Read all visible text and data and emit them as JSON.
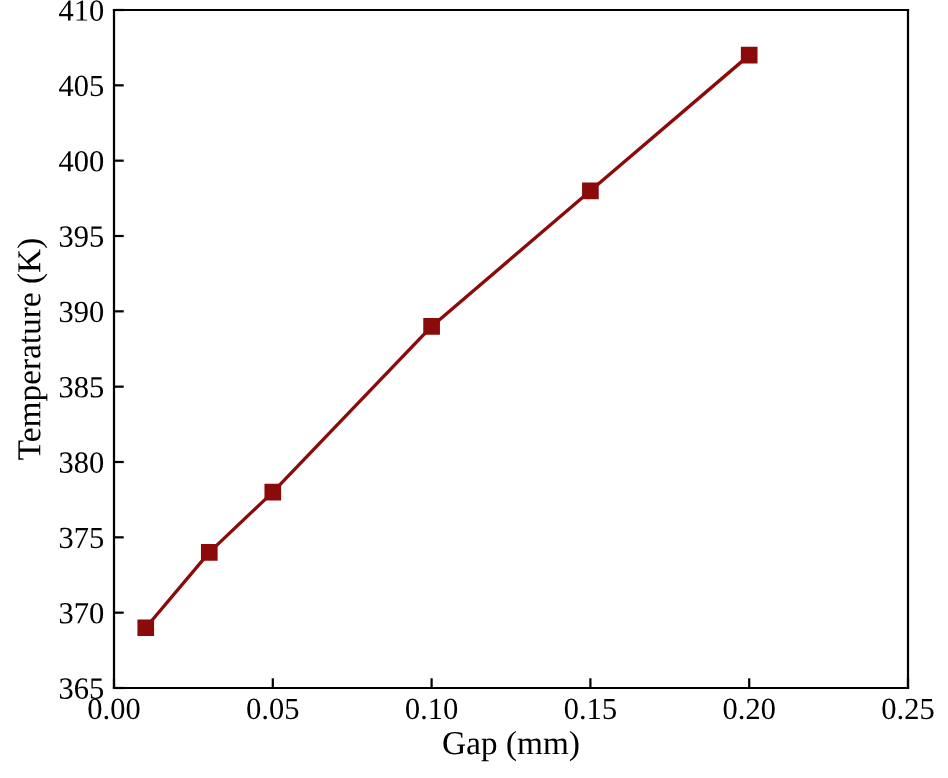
{
  "chart_data": {
    "type": "line",
    "xlabel": "Gap (mm)",
    "ylabel": "Temperature (K)",
    "x": [
      0.01,
      0.03,
      0.05,
      0.1,
      0.15,
      0.2
    ],
    "series": [
      {
        "color": "#8b0a0a",
        "values": [
          369,
          374,
          378,
          389,
          398,
          407
        ]
      }
    ],
    "xlim": [
      0,
      0.25
    ],
    "xticks": [
      {
        "value": 0,
        "label": "0.00"
      },
      0.05,
      {
        "value": 0.1,
        "label": "0.10"
      },
      0.15,
      {
        "value": 0.2,
        "label": "0.20"
      },
      0.25
    ],
    "ylim": [
      365,
      410
    ],
    "yticks": [
      365,
      370,
      375,
      380,
      385,
      390,
      395,
      400,
      405,
      410
    ],
    "marker": "square",
    "line_style": "solid",
    "grid": false,
    "legend": false
  }
}
